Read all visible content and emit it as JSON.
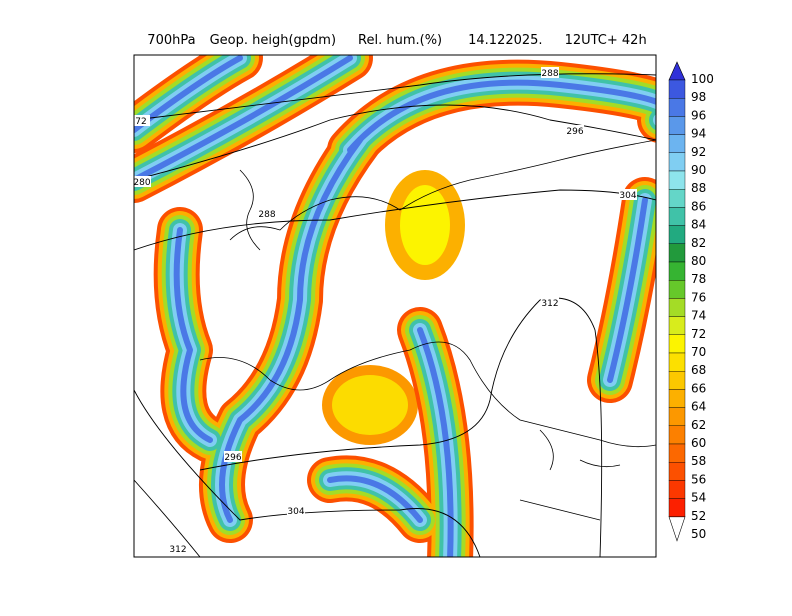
{
  "header": {
    "level": "700hPa",
    "field1": "Geop. heigh(gpdm)",
    "field2": "Rel. hum.(%)",
    "date": "14.122025.",
    "time": "12UTC+ 42h"
  },
  "contour_labels": [
    {
      "text": "288"
    },
    {
      "text": "296"
    },
    {
      "text": "304"
    },
    {
      "text": "312"
    },
    {
      "text": "72"
    },
    {
      "text": "280"
    },
    {
      "text": "288"
    },
    {
      "text": "296"
    },
    {
      "text": "304"
    },
    {
      "text": "312"
    }
  ],
  "colorbar": {
    "labels": [
      "100",
      "98",
      "96",
      "94",
      "92",
      "90",
      "88",
      "86",
      "84",
      "82",
      "80",
      "78",
      "76",
      "74",
      "72",
      "70",
      "68",
      "66",
      "64",
      "62",
      "60",
      "58",
      "56",
      "54",
      "52",
      "50"
    ],
    "colors": [
      "#3030d8",
      "#3c58e0",
      "#4a78e6",
      "#5a98ea",
      "#6cb4f0",
      "#80cef2",
      "#8ee4ec",
      "#64d6c8",
      "#40c2a8",
      "#22aa80",
      "#229a3c",
      "#36b432",
      "#66c82a",
      "#a4dc26",
      "#d8ec1c",
      "#fcf400",
      "#fce000",
      "#fcc800",
      "#fcb000",
      "#fc9800",
      "#fc8000",
      "#fc6800",
      "#fc5000",
      "#fc3800",
      "#fc2000"
    ]
  }
}
